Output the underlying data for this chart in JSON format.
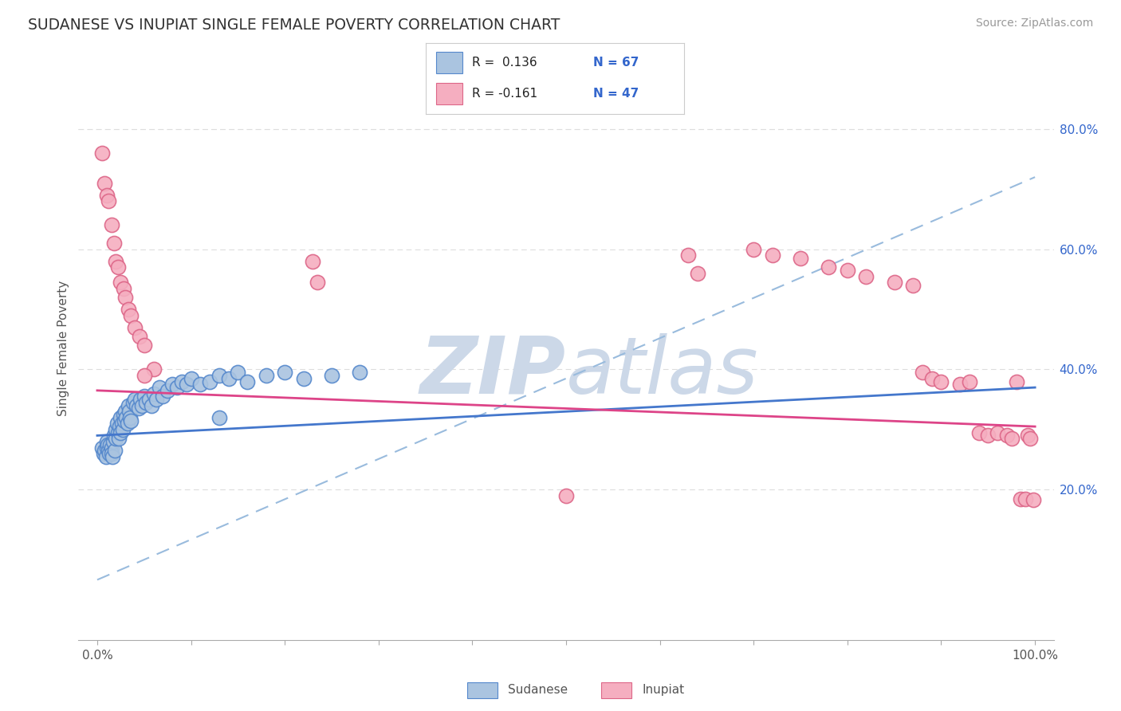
{
  "title": "SUDANESE VS INUPIAT SINGLE FEMALE POVERTY CORRELATION CHART",
  "source": "Source: ZipAtlas.com",
  "ylabel": "Single Female Poverty",
  "xlim": [
    -0.02,
    1.02
  ],
  "ylim": [
    -0.05,
    0.92
  ],
  "xtick_positions": [
    0.0,
    0.1,
    0.2,
    0.3,
    0.4,
    0.5,
    0.6,
    0.7,
    0.8,
    0.9,
    1.0
  ],
  "xtick_labels_show": [
    "0.0%",
    "",
    "",
    "",
    "",
    "",
    "",
    "",
    "",
    "",
    "100.0%"
  ],
  "ytick_right_positions": [
    0.2,
    0.4,
    0.6,
    0.8
  ],
  "ytick_right_labels": [
    "20.0%",
    "40.0%",
    "60.0%",
    "80.0%"
  ],
  "sudanese_color": "#aac4e0",
  "inupiat_color": "#f5aec0",
  "sudanese_edge": "#5588cc",
  "inupiat_edge": "#dd6688",
  "blue_line_color": "#4477cc",
  "pink_line_color": "#dd4488",
  "dashed_line_color": "#99bbdd",
  "background_color": "#ffffff",
  "watermark_color": "#ccd8e8",
  "grid_color": "#dddddd",
  "sudanese_x": [
    0.005,
    0.007,
    0.008,
    0.009,
    0.01,
    0.01,
    0.011,
    0.012,
    0.013,
    0.014,
    0.015,
    0.015,
    0.016,
    0.017,
    0.018,
    0.019,
    0.02,
    0.02,
    0.021,
    0.022,
    0.023,
    0.024,
    0.025,
    0.025,
    0.026,
    0.027,
    0.028,
    0.029,
    0.03,
    0.031,
    0.032,
    0.033,
    0.034,
    0.035,
    0.036,
    0.038,
    0.04,
    0.042,
    0.044,
    0.046,
    0.048,
    0.05,
    0.052,
    0.055,
    0.058,
    0.06,
    0.063,
    0.066,
    0.07,
    0.075,
    0.08,
    0.085,
    0.09,
    0.095,
    0.1,
    0.11,
    0.12,
    0.13,
    0.14,
    0.15,
    0.16,
    0.18,
    0.2,
    0.22,
    0.25,
    0.28,
    0.13
  ],
  "sudanese_y": [
    0.27,
    0.26,
    0.265,
    0.255,
    0.28,
    0.27,
    0.275,
    0.265,
    0.26,
    0.275,
    0.27,
    0.26,
    0.255,
    0.28,
    0.29,
    0.265,
    0.3,
    0.285,
    0.31,
    0.295,
    0.285,
    0.305,
    0.295,
    0.32,
    0.31,
    0.3,
    0.325,
    0.315,
    0.33,
    0.32,
    0.31,
    0.34,
    0.33,
    0.32,
    0.315,
    0.345,
    0.35,
    0.34,
    0.335,
    0.35,
    0.34,
    0.355,
    0.345,
    0.35,
    0.34,
    0.36,
    0.35,
    0.37,
    0.355,
    0.365,
    0.375,
    0.37,
    0.38,
    0.375,
    0.385,
    0.375,
    0.38,
    0.39,
    0.385,
    0.395,
    0.38,
    0.39,
    0.395,
    0.385,
    0.39,
    0.395,
    0.32
  ],
  "inupiat_x": [
    0.005,
    0.008,
    0.01,
    0.012,
    0.015,
    0.018,
    0.02,
    0.022,
    0.025,
    0.028,
    0.03,
    0.033,
    0.036,
    0.04,
    0.045,
    0.05,
    0.06,
    0.05,
    0.23,
    0.235,
    0.5,
    0.63,
    0.64,
    0.7,
    0.72,
    0.75,
    0.78,
    0.8,
    0.82,
    0.85,
    0.87,
    0.88,
    0.89,
    0.9,
    0.92,
    0.93,
    0.94,
    0.95,
    0.96,
    0.97,
    0.975,
    0.98,
    0.985,
    0.99,
    0.992,
    0.995,
    0.998
  ],
  "inupiat_y": [
    0.76,
    0.71,
    0.69,
    0.68,
    0.64,
    0.61,
    0.58,
    0.57,
    0.545,
    0.535,
    0.52,
    0.5,
    0.49,
    0.47,
    0.455,
    0.44,
    0.4,
    0.39,
    0.58,
    0.545,
    0.19,
    0.59,
    0.56,
    0.6,
    0.59,
    0.585,
    0.57,
    0.565,
    0.555,
    0.545,
    0.54,
    0.395,
    0.385,
    0.38,
    0.375,
    0.38,
    0.295,
    0.29,
    0.295,
    0.29,
    0.285,
    0.38,
    0.185,
    0.185,
    0.29,
    0.285,
    0.183
  ],
  "blue_trendline": [
    0.0,
    0.29,
    1.0,
    0.37
  ],
  "pink_trendline": [
    0.0,
    0.365,
    1.0,
    0.305
  ],
  "dashed_trendline": [
    0.0,
    0.05,
    1.0,
    0.72
  ]
}
